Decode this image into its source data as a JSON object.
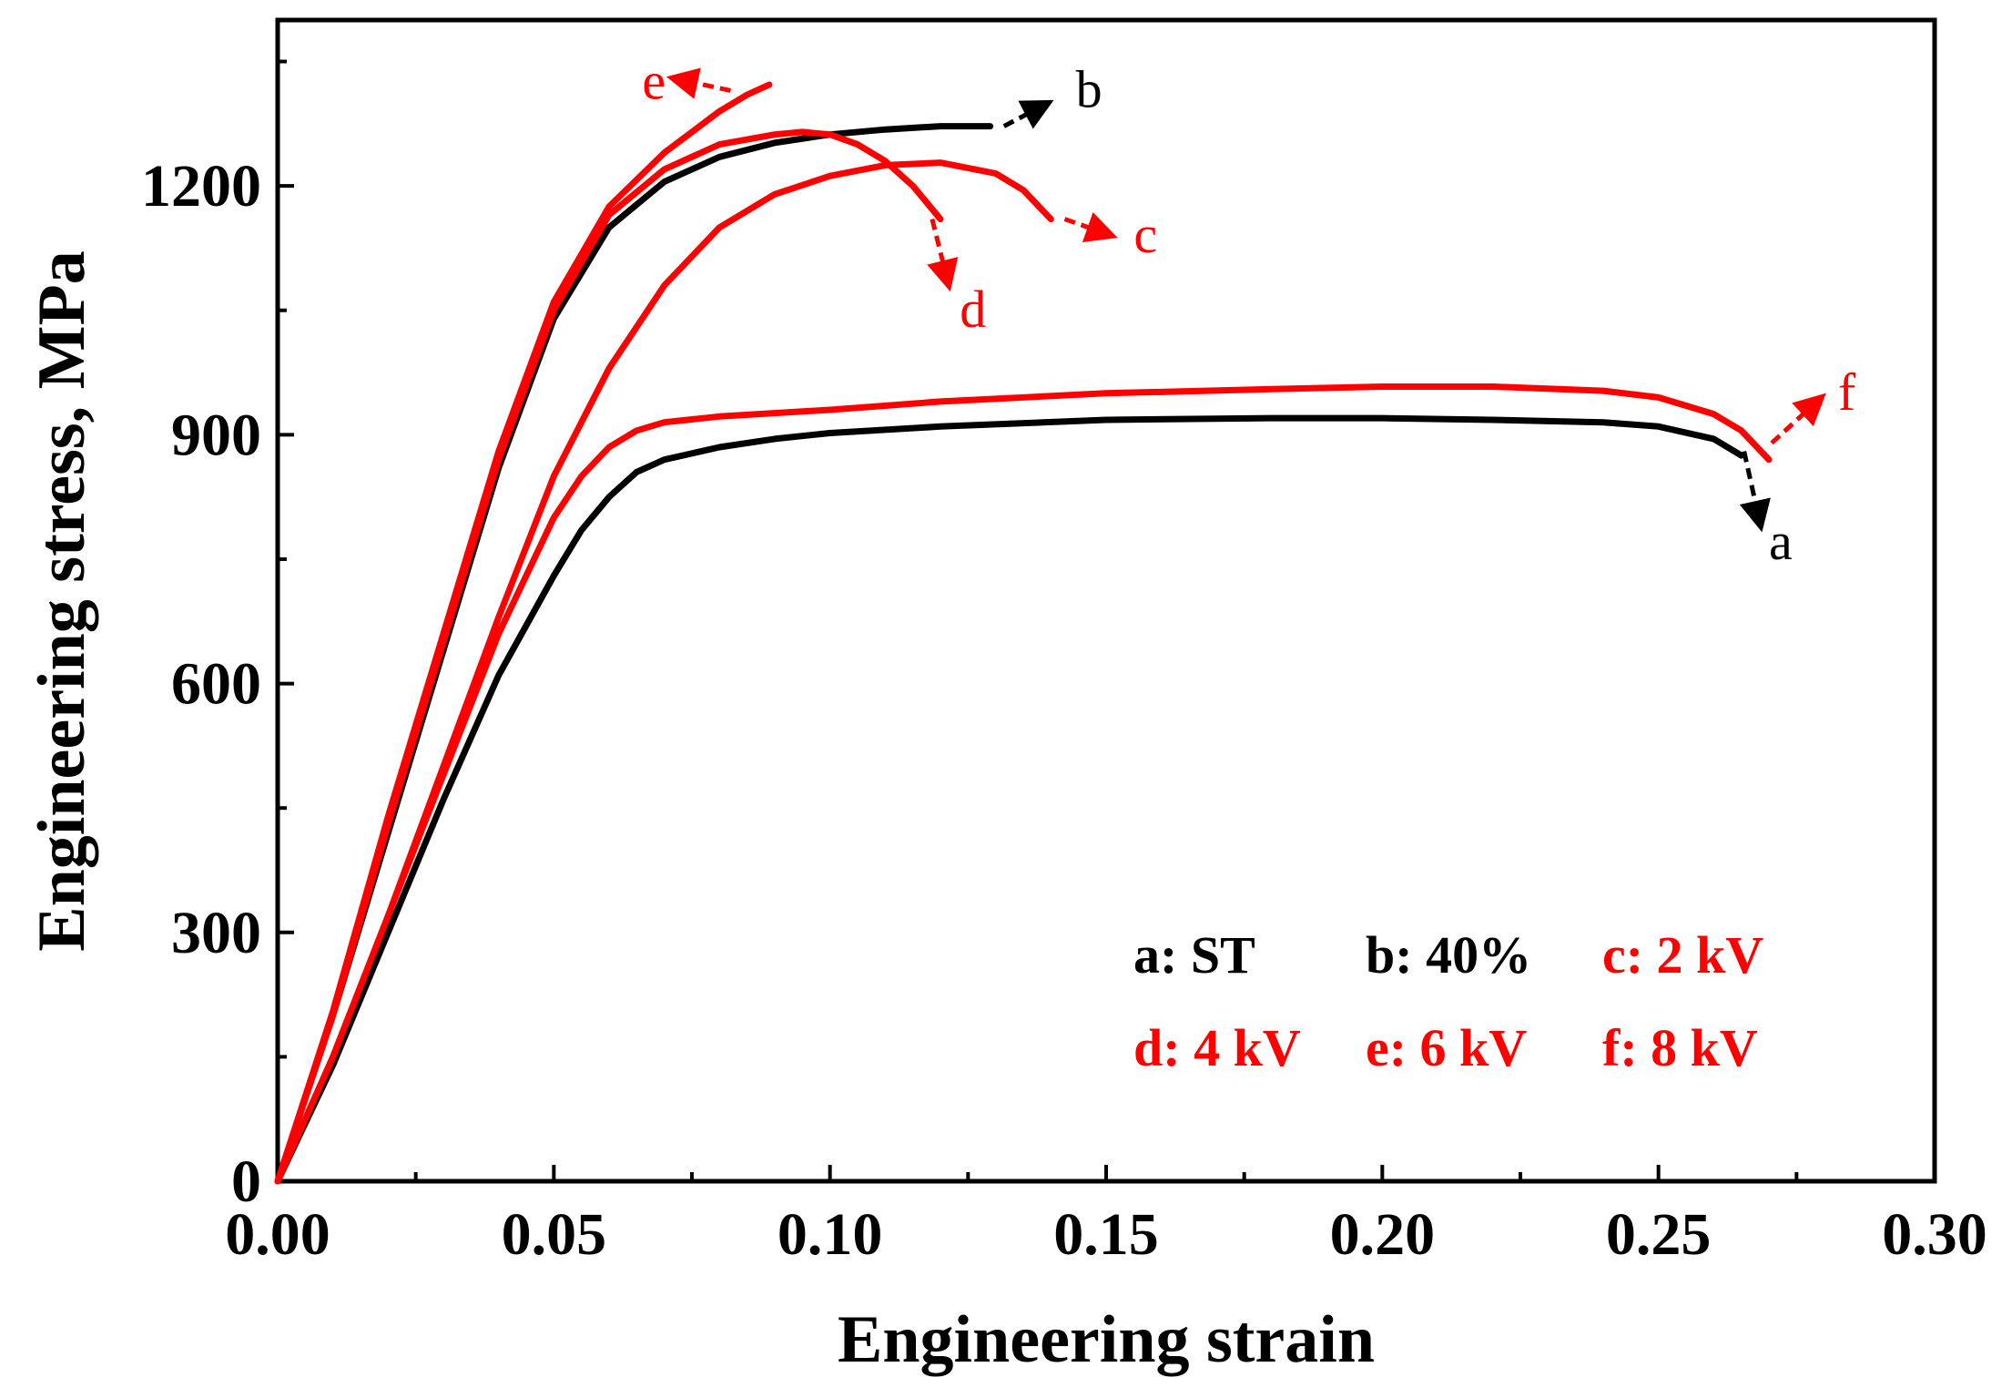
{
  "chart_data": {
    "type": "line",
    "title": "",
    "xlabel": "Engineering strain",
    "ylabel": "Engineering stress, MPa",
    "xlim": [
      0,
      0.3
    ],
    "ylim": [
      0,
      1400
    ],
    "xticks": [
      0.0,
      0.05,
      0.1,
      0.15,
      0.2,
      0.25,
      0.3
    ],
    "xtick_labels": [
      "0.00",
      "0.05",
      "0.10",
      "0.15",
      "0.20",
      "0.25",
      "0.30"
    ],
    "yticks": [
      0,
      300,
      600,
      900,
      1200
    ],
    "ytick_labels": [
      "0",
      "300",
      "600",
      "900",
      "1200"
    ],
    "grid": false,
    "legend_position": "bottom-right",
    "legend": [
      {
        "text": "a:  ST",
        "color": "#000000"
      },
      {
        "text": "b: 40%",
        "color": "#000000"
      },
      {
        "text": "c: 2 kV",
        "color": "#ff0000"
      },
      {
        "text": "d: 4 kV",
        "color": "#ff0000"
      },
      {
        "text": "e: 6 kV",
        "color": "#ff0000"
      },
      {
        "text": "f: 8 kV",
        "color": "#ff0000"
      }
    ],
    "series": [
      {
        "label": "a",
        "color": "#000000",
        "x": [
          0,
          0.01,
          0.02,
          0.03,
          0.04,
          0.05,
          0.055,
          0.06,
          0.065,
          0.07,
          0.08,
          0.09,
          0.1,
          0.12,
          0.15,
          0.18,
          0.2,
          0.22,
          0.24,
          0.25,
          0.26,
          0.265
        ],
        "y": [
          0,
          140,
          300,
          460,
          610,
          730,
          785,
          825,
          855,
          870,
          885,
          895,
          902,
          910,
          918,
          920,
          920,
          918,
          915,
          910,
          895,
          875
        ]
      },
      {
        "label": "b",
        "color": "#000000",
        "x": [
          0,
          0.01,
          0.02,
          0.03,
          0.04,
          0.05,
          0.06,
          0.07,
          0.08,
          0.09,
          0.1,
          0.11,
          0.12,
          0.129
        ],
        "y": [
          0,
          200,
          420,
          640,
          860,
          1040,
          1150,
          1205,
          1235,
          1252,
          1262,
          1268,
          1272,
          1272
        ]
      },
      {
        "label": "c",
        "color": "#ff0000",
        "x": [
          0,
          0.01,
          0.02,
          0.03,
          0.04,
          0.05,
          0.06,
          0.07,
          0.08,
          0.09,
          0.1,
          0.11,
          0.12,
          0.13,
          0.135,
          0.14
        ],
        "y": [
          0,
          150,
          320,
          500,
          680,
          850,
          980,
          1080,
          1150,
          1190,
          1212,
          1225,
          1228,
          1215,
          1195,
          1160
        ]
      },
      {
        "label": "d",
        "color": "#ff0000",
        "x": [
          0,
          0.01,
          0.02,
          0.03,
          0.04,
          0.05,
          0.06,
          0.07,
          0.08,
          0.09,
          0.095,
          0.1,
          0.105,
          0.11,
          0.115,
          0.12
        ],
        "y": [
          0,
          200,
          430,
          650,
          870,
          1050,
          1165,
          1220,
          1250,
          1262,
          1265,
          1262,
          1250,
          1230,
          1200,
          1160
        ]
      },
      {
        "label": "e",
        "color": "#ff0000",
        "x": [
          0,
          0.01,
          0.02,
          0.03,
          0.04,
          0.05,
          0.06,
          0.07,
          0.08,
          0.085,
          0.089
        ],
        "y": [
          0,
          205,
          440,
          660,
          880,
          1060,
          1175,
          1240,
          1290,
          1310,
          1322
        ]
      },
      {
        "label": "f",
        "color": "#ff0000",
        "x": [
          0,
          0.01,
          0.02,
          0.03,
          0.04,
          0.05,
          0.055,
          0.06,
          0.065,
          0.07,
          0.08,
          0.1,
          0.12,
          0.15,
          0.18,
          0.2,
          0.22,
          0.24,
          0.25,
          0.26,
          0.265,
          0.27
        ],
        "y": [
          0,
          150,
          320,
          490,
          660,
          800,
          850,
          885,
          905,
          915,
          922,
          930,
          940,
          950,
          955,
          958,
          958,
          953,
          945,
          925,
          905,
          870
        ]
      }
    ],
    "annotations": [
      {
        "text": "a",
        "color": "#000000",
        "arrow_from": [
          0.2655,
          880
        ],
        "arrow_to": [
          0.2685,
          790
        ],
        "label_at": [
          0.27,
          770
        ],
        "arrow": true
      },
      {
        "text": "b",
        "color": "#000000",
        "arrow_from": [
          0.1315,
          1272
        ],
        "arrow_to": [
          0.1395,
          1300
        ],
        "label_at": [
          0.1445,
          1315
        ],
        "arrow": true
      },
      {
        "text": "c",
        "color": "#ff0000",
        "arrow_from": [
          0.1425,
          1160
        ],
        "arrow_to": [
          0.151,
          1140
        ],
        "label_at": [
          0.155,
          1140
        ],
        "arrow": true
      },
      {
        "text": "d",
        "color": "#ff0000",
        "arrow_from": [
          0.1185,
          1160
        ],
        "arrow_to": [
          0.1215,
          1080
        ],
        "label_at": [
          0.1235,
          1050
        ],
        "arrow": true
      },
      {
        "text": "e",
        "color": "#ff0000",
        "arrow_from": [
          0.082,
          1315
        ],
        "arrow_to": [
          0.0715,
          1330
        ],
        "label_at": [
          0.066,
          1325
        ],
        "arrow": true
      },
      {
        "text": "f",
        "color": "#ff0000",
        "arrow_from": [
          0.2705,
          890
        ],
        "arrow_to": [
          0.2795,
          945
        ],
        "label_at": [
          0.2825,
          950
        ],
        "arrow": true
      }
    ]
  }
}
